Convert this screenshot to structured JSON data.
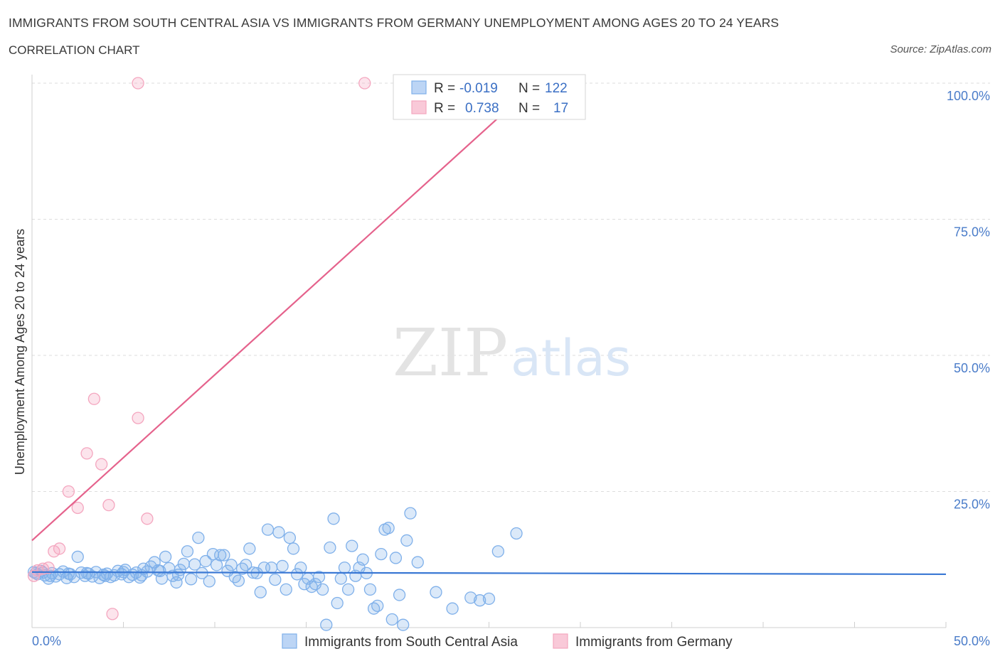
{
  "title": "IMMIGRANTS FROM SOUTH CENTRAL ASIA VS IMMIGRANTS FROM GERMANY UNEMPLOYMENT AMONG AGES 20 TO 24 YEARS",
  "subtitle": "CORRELATION CHART",
  "source": "Source: ZipAtlas.com",
  "watermark": {
    "zip": "ZIP",
    "atlas": "atlas"
  },
  "stats": {
    "r_label": "R =",
    "n_label": "N =",
    "rows": [
      {
        "series": "Immigrants from South Central Asia",
        "r": "-0.019",
        "n": "122",
        "color": "#7fb0ea"
      },
      {
        "series": "Immigrants from Germany",
        "r": "0.738",
        "n": "17",
        "color": "#f4a6bf"
      }
    ]
  },
  "chart_data": {
    "type": "scatter",
    "title": "IMMIGRANTS FROM SOUTH CENTRAL ASIA VS IMMIGRANTS FROM GERMANY UNEMPLOYMENT AMONG AGES 20 TO 24 YEARS",
    "xlabel": "",
    "ylabel": "Unemployment Among Ages 20 to 24 years",
    "xlim": [
      0,
      50
    ],
    "ylim": [
      0,
      100
    ],
    "x_tick_labels": [
      "0.0%",
      "50.0%"
    ],
    "y_tick_values": [
      25,
      50,
      75,
      100
    ],
    "y_tick_labels": [
      "25.0%",
      "50.0%",
      "75.0%",
      "100.0%"
    ],
    "grid": true,
    "legend_position": "bottom",
    "series": [
      {
        "name": "Immigrants from South Central Asia",
        "color": "#7fb0ea",
        "line_color": "#3a78d4",
        "trend": {
          "x": [
            0,
            50
          ],
          "y": [
            10.2,
            9.8
          ]
        },
        "points": [
          [
            0.1,
            10.2
          ],
          [
            0.3,
            9.8
          ],
          [
            0.5,
            10.4
          ],
          [
            0.7,
            9.6
          ],
          [
            0.9,
            9.0
          ],
          [
            1.1,
            10.0
          ],
          [
            1.3,
            9.4
          ],
          [
            1.5,
            9.8
          ],
          [
            1.7,
            10.3
          ],
          [
            1.9,
            9.1
          ],
          [
            2.1,
            9.8
          ],
          [
            2.3,
            9.3
          ],
          [
            2.5,
            13.0
          ],
          [
            2.7,
            10.1
          ],
          [
            2.9,
            9.5
          ],
          [
            3.1,
            9.9
          ],
          [
            3.3,
            9.4
          ],
          [
            3.5,
            10.2
          ],
          [
            3.7,
            9.1
          ],
          [
            3.9,
            9.7
          ],
          [
            4.1,
            9.9
          ],
          [
            4.3,
            9.3
          ],
          [
            4.5,
            9.6
          ],
          [
            4.7,
            10.4
          ],
          [
            4.9,
            9.8
          ],
          [
            5.1,
            10.6
          ],
          [
            5.3,
            9.3
          ],
          [
            5.5,
            9.7
          ],
          [
            5.7,
            10.1
          ],
          [
            5.9,
            9.2
          ],
          [
            6.1,
            10.8
          ],
          [
            6.3,
            10.3
          ],
          [
            6.5,
            11.2
          ],
          [
            6.7,
            12.0
          ],
          [
            6.9,
            10.5
          ],
          [
            7.1,
            9.0
          ],
          [
            7.3,
            13.0
          ],
          [
            7.5,
            10.9
          ],
          [
            7.7,
            9.5
          ],
          [
            7.9,
            8.3
          ],
          [
            8.1,
            10.6
          ],
          [
            8.3,
            11.7
          ],
          [
            8.5,
            14.0
          ],
          [
            8.7,
            8.9
          ],
          [
            8.9,
            11.6
          ],
          [
            9.1,
            16.5
          ],
          [
            9.3,
            10.0
          ],
          [
            9.5,
            12.2
          ],
          [
            9.7,
            8.5
          ],
          [
            9.9,
            13.5
          ],
          [
            10.1,
            11.5
          ],
          [
            10.3,
            13.3
          ],
          [
            10.5,
            13.3
          ],
          [
            10.7,
            10.4
          ],
          [
            10.9,
            11.5
          ],
          [
            11.1,
            9.3
          ],
          [
            11.3,
            8.6
          ],
          [
            11.5,
            10.8
          ],
          [
            11.7,
            11.5
          ],
          [
            11.9,
            14.5
          ],
          [
            12.1,
            10.1
          ],
          [
            12.3,
            10.0
          ],
          [
            12.5,
            6.5
          ],
          [
            12.7,
            11.0
          ],
          [
            12.9,
            18.0
          ],
          [
            13.1,
            11.0
          ],
          [
            13.3,
            8.8
          ],
          [
            13.5,
            17.5
          ],
          [
            13.7,
            11.3
          ],
          [
            13.9,
            7.0
          ],
          [
            14.1,
            16.5
          ],
          [
            14.3,
            14.5
          ],
          [
            14.5,
            9.8
          ],
          [
            14.7,
            11.0
          ],
          [
            14.9,
            8.0
          ],
          [
            15.1,
            9.0
          ],
          [
            15.3,
            7.5
          ],
          [
            15.5,
            8.0
          ],
          [
            15.7,
            9.3
          ],
          [
            15.9,
            7.0
          ],
          [
            16.1,
            0.5
          ],
          [
            16.3,
            14.7
          ],
          [
            16.5,
            20.0
          ],
          [
            16.7,
            4.5
          ],
          [
            16.9,
            9.0
          ],
          [
            17.1,
            11.0
          ],
          [
            17.3,
            7.0
          ],
          [
            17.5,
            15.0
          ],
          [
            17.7,
            9.5
          ],
          [
            17.9,
            11.0
          ],
          [
            18.1,
            12.5
          ],
          [
            18.3,
            10.0
          ],
          [
            18.5,
            7.0
          ],
          [
            18.7,
            3.5
          ],
          [
            18.9,
            4.0
          ],
          [
            19.1,
            13.5
          ],
          [
            19.3,
            18.0
          ],
          [
            19.5,
            18.3
          ],
          [
            19.7,
            1.5
          ],
          [
            19.9,
            12.8
          ],
          [
            20.1,
            6.0
          ],
          [
            20.3,
            0.5
          ],
          [
            20.5,
            16.0
          ],
          [
            20.7,
            21.0
          ],
          [
            21.1,
            12.0
          ],
          [
            22.1,
            6.5
          ],
          [
            23.0,
            3.5
          ],
          [
            24.0,
            5.5
          ],
          [
            24.5,
            5.0
          ],
          [
            25.0,
            5.3
          ],
          [
            25.5,
            14.0
          ],
          [
            26.5,
            17.3
          ],
          [
            0.2,
            10.0
          ],
          [
            0.6,
            10.1
          ],
          [
            1.0,
            9.5
          ],
          [
            2.0,
            9.9
          ],
          [
            3.0,
            10.0
          ],
          [
            4.0,
            9.5
          ],
          [
            5.0,
            10.2
          ],
          [
            6.0,
            9.6
          ],
          [
            7.0,
            10.4
          ],
          [
            8.0,
            9.7
          ]
        ]
      },
      {
        "name": "Immigrants from Germany",
        "color": "#f4a6bf",
        "line_color": "#e5628c",
        "trend": {
          "x": [
            0,
            27.6
          ],
          "y": [
            16.0,
            100.0
          ]
        },
        "points": [
          [
            0.1,
            9.5
          ],
          [
            0.3,
            10.5
          ],
          [
            0.6,
            10.8
          ],
          [
            0.9,
            11.0
          ],
          [
            1.2,
            14.0
          ],
          [
            1.5,
            14.5
          ],
          [
            2.0,
            25.0
          ],
          [
            2.5,
            22.0
          ],
          [
            3.0,
            32.0
          ],
          [
            3.4,
            42.0
          ],
          [
            3.8,
            30.0
          ],
          [
            4.2,
            22.5
          ],
          [
            4.4,
            2.5
          ],
          [
            5.8,
            38.5
          ],
          [
            6.3,
            20.0
          ],
          [
            5.8,
            100.0
          ],
          [
            18.2,
            100.0
          ]
        ]
      }
    ],
    "extra_points_note_free": true
  }
}
